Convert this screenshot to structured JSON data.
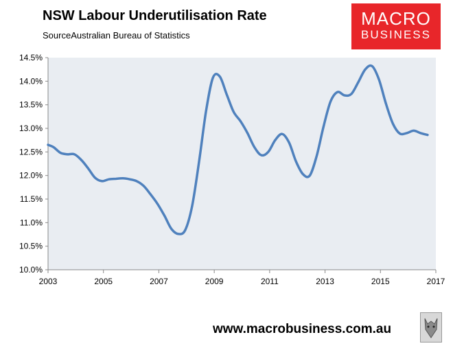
{
  "header": {
    "title": "NSW Labour Underutilisation Rate",
    "subtitle": "SourceAustralian Bureau of Statistics"
  },
  "logo": {
    "line1": "MACRO",
    "line2": "BUSINESS",
    "color": "#e8262a"
  },
  "footer": {
    "url": "www.macrobusiness.com.au"
  },
  "chart_data": {
    "type": "line",
    "title": "NSW Labour Underutilisation Rate",
    "xlabel": "",
    "ylabel": "",
    "xlim": [
      2003,
      2017
    ],
    "ylim": [
      10.0,
      14.5
    ],
    "x_ticks": [
      2003,
      2005,
      2007,
      2009,
      2011,
      2013,
      2015,
      2017
    ],
    "y_ticks": [
      10.0,
      10.5,
      11.0,
      11.5,
      12.0,
      12.5,
      13.0,
      13.5,
      14.0,
      14.5
    ],
    "y_tick_labels": [
      "10.0%",
      "10.5%",
      "11.0%",
      "11.5%",
      "12.0%",
      "12.5%",
      "13.0%",
      "13.5%",
      "14.0%",
      "14.5%"
    ],
    "x_tick_labels": [
      "2003",
      "2005",
      "2007",
      "2009",
      "2011",
      "2013",
      "2015",
      "2017"
    ],
    "grid": false,
    "plot_background": "#e9edf2",
    "line_color": "#4f81bd",
    "series": [
      {
        "x": [
          2003.0,
          2003.2,
          2003.45,
          2003.7,
          2003.95,
          2004.2,
          2004.45,
          2004.7,
          2004.95,
          2005.2,
          2005.45,
          2005.7,
          2005.95,
          2006.2,
          2006.45,
          2006.7,
          2006.95,
          2007.2,
          2007.45,
          2007.7,
          2007.95,
          2008.2,
          2008.45,
          2008.7,
          2008.95,
          2009.2,
          2009.45,
          2009.7,
          2009.95,
          2010.2,
          2010.45,
          2010.7,
          2010.95,
          2011.2,
          2011.45,
          2011.7,
          2011.95,
          2012.2,
          2012.45,
          2012.7,
          2012.95,
          2013.2,
          2013.45,
          2013.7,
          2013.95,
          2014.2,
          2014.45,
          2014.7,
          2014.95,
          2015.2,
          2015.45,
          2015.7,
          2015.95,
          2016.2,
          2016.45,
          2016.7
        ],
        "values": [
          12.65,
          12.6,
          12.48,
          12.45,
          12.45,
          12.33,
          12.15,
          11.95,
          11.88,
          11.92,
          11.93,
          11.94,
          11.92,
          11.88,
          11.78,
          11.6,
          11.4,
          11.15,
          10.87,
          10.76,
          10.84,
          11.35,
          12.28,
          13.35,
          14.07,
          14.1,
          13.72,
          13.35,
          13.15,
          12.9,
          12.6,
          12.43,
          12.5,
          12.75,
          12.88,
          12.7,
          12.3,
          12.03,
          12.0,
          12.42,
          13.05,
          13.57,
          13.77,
          13.7,
          13.73,
          13.98,
          14.25,
          14.32,
          14.03,
          13.52,
          13.1,
          12.89,
          12.9,
          12.95,
          12.9,
          12.86
        ]
      }
    ]
  }
}
